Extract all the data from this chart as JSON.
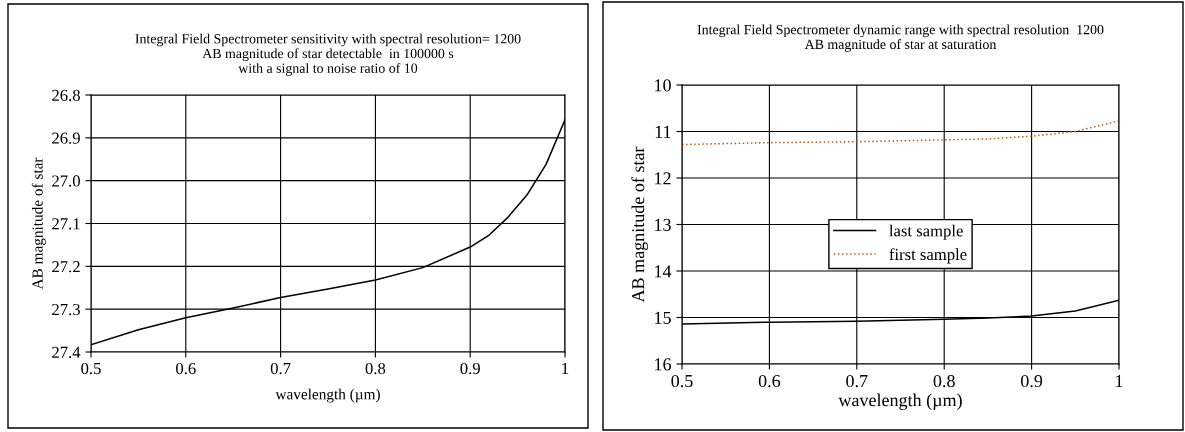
{
  "chart_data": [
    {
      "type": "line",
      "title": "Integral Field Spectrometer sensitivity with spectral resolution= 1200\nAB magnitude of star detectable  in 100000 s\nwith a signal to noise ratio of 10",
      "xlabel": "wavelength (µm)",
      "ylabel": "AB magnitude of star",
      "x": [
        0.5,
        0.55,
        0.6,
        0.65,
        0.7,
        0.75,
        0.8,
        0.85,
        0.9,
        0.92,
        0.94,
        0.96,
        0.98,
        1.0
      ],
      "series": [
        {
          "color": "#000000",
          "values": [
            27.383,
            27.348,
            27.32,
            27.297,
            27.273,
            27.253,
            27.232,
            27.203,
            27.155,
            27.127,
            27.085,
            27.033,
            26.962,
            26.858
          ]
        }
      ],
      "xlim": [
        0.5,
        1
      ],
      "xticks": [
        0.5,
        0.6,
        0.7,
        0.8,
        0.9,
        1
      ],
      "ylim": [
        27.4,
        26.8
      ],
      "yticks": [
        26.8,
        26.9,
        {
          "value": 27.0,
          "label": "27.0"
        },
        27.1,
        27.2,
        27.3,
        27.4
      ],
      "grid": true,
      "legend": false
    },
    {
      "type": "line",
      "title": "Integral Field Spectrometer dynamic range with spectral resolution  1200\nAB magnitude of star at saturation",
      "xlabel": "wavelength (µm)",
      "ylabel": "AB magnitude of star",
      "x": [
        0.5,
        0.6,
        0.7,
        0.8,
        0.85,
        0.9,
        0.95,
        1.0
      ],
      "series": [
        {
          "name": "last sample",
          "color": "#000000",
          "line_style": "solid",
          "values": [
            15.14,
            15.1,
            15.08,
            15.04,
            15.01,
            14.97,
            14.86,
            14.63
          ]
        },
        {
          "name": "first sample",
          "color": "#b8621a",
          "line_style": "dotted",
          "values": [
            11.28,
            11.24,
            11.22,
            11.18,
            11.16,
            11.1,
            11.0,
            10.77
          ]
        }
      ],
      "xlim": [
        0.5,
        1
      ],
      "xticks": [
        0.5,
        0.6,
        0.7,
        0.8,
        0.9,
        1
      ],
      "ylim": [
        16,
        10
      ],
      "yticks": [
        10,
        11,
        12,
        13,
        14,
        15,
        16
      ],
      "grid": true,
      "legend": "center"
    }
  ]
}
